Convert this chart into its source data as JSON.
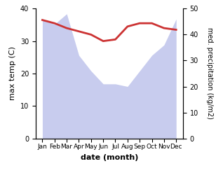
{
  "months": [
    "Jan",
    "Feb",
    "Mar",
    "Apr",
    "May",
    "Jun",
    "Jul",
    "Aug",
    "Sep",
    "Oct",
    "Nov",
    "Dec"
  ],
  "temp": [
    36.5,
    35.5,
    34.0,
    33.0,
    32.0,
    30.0,
    30.5,
    34.5,
    35.5,
    35.5,
    34.0,
    33.5
  ],
  "precip": [
    46,
    44,
    48,
    32,
    26,
    21,
    21,
    20,
    26,
    32,
    36,
    46
  ],
  "temp_color": "#cc3333",
  "precip_fill_color": "#c8ccee",
  "temp_lw": 2.0,
  "ylabel_left": "max temp (C)",
  "ylabel_right": "med. precipitation (kg/m2)",
  "xlabel": "date (month)",
  "ylim_left": [
    0,
    40
  ],
  "ylim_right": [
    0,
    50
  ],
  "yticks_left": [
    0,
    10,
    20,
    30,
    40
  ],
  "yticks_right": [
    0,
    10,
    20,
    30,
    40,
    50
  ],
  "background_color": "#ffffff"
}
